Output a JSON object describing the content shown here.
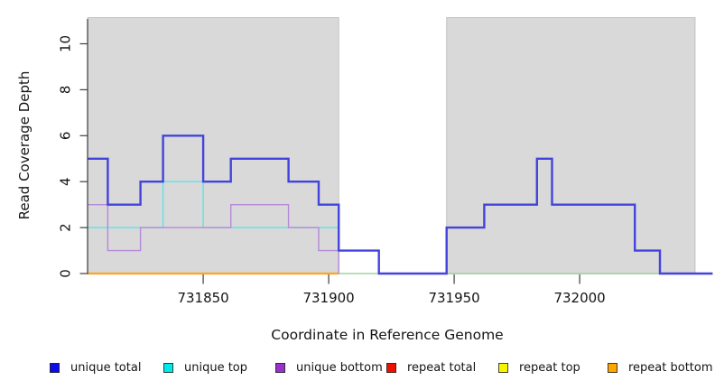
{
  "chart_data": {
    "type": "line",
    "subtype": "step-coverage",
    "title": "",
    "xlabel": "Coordinate in Reference Genome",
    "ylabel": "Read Coverage Depth",
    "x_ticks": [
      731850,
      731900,
      731950,
      732000
    ],
    "y_ticks": [
      0,
      2,
      4,
      6,
      8,
      10
    ],
    "xlim": [
      731804,
      732053
    ],
    "ylim": [
      0,
      11.1
    ],
    "grid": "off",
    "legend_position": "bottom",
    "shade_color": "#d9d9d9",
    "background_shaded_regions_x": [
      [
        731804,
        731904
      ],
      [
        731947,
        732046
      ]
    ],
    "baseline_segments": [
      {
        "name": "repeat-zero-baseline",
        "color": "#ffa41b",
        "from": 731804,
        "to": 731904
      },
      {
        "name": "overlap-zero-baseline",
        "color": "#a1d6a1",
        "from": 731904,
        "to": 732046
      }
    ],
    "series": [
      {
        "name": "unique top",
        "color": "#5ce4e6",
        "end": 731904,
        "steps": [
          [
            731804,
            2
          ],
          [
            731834,
            4
          ],
          [
            731850,
            2
          ],
          [
            731904,
            0
          ]
        ]
      },
      {
        "name": "unique bottom",
        "color": "#b689d9",
        "end": 731904,
        "steps": [
          [
            731804,
            3
          ],
          [
            731812,
            1
          ],
          [
            731825,
            2
          ],
          [
            731861,
            3
          ],
          [
            731884,
            2
          ],
          [
            731896,
            1
          ],
          [
            731904,
            0
          ]
        ]
      },
      {
        "name": "unique total",
        "color": "#4343dd",
        "end": 732053,
        "steps": [
          [
            731804,
            5
          ],
          [
            731812,
            3
          ],
          [
            731825,
            4
          ],
          [
            731834,
            6
          ],
          [
            731850,
            4
          ],
          [
            731861,
            5
          ],
          [
            731884,
            4
          ],
          [
            731896,
            3
          ],
          [
            731904,
            1
          ],
          [
            731920,
            0
          ],
          [
            731947,
            2
          ],
          [
            731962,
            3
          ],
          [
            731983,
            5
          ],
          [
            731989,
            3
          ],
          [
            732022,
            1
          ],
          [
            732032,
            0
          ]
        ]
      }
    ]
  },
  "legend": {
    "items": [
      {
        "label": "unique total",
        "color": "#0b0beb"
      },
      {
        "label": "unique top",
        "color": "#00e8e8"
      },
      {
        "label": "unique bottom",
        "color": "#9932cc"
      },
      {
        "label": "repeat total",
        "color": "#ee1100"
      },
      {
        "label": "repeat top",
        "color": "#f5f500"
      },
      {
        "label": "repeat bottom",
        "color": "#ffa500"
      }
    ]
  }
}
